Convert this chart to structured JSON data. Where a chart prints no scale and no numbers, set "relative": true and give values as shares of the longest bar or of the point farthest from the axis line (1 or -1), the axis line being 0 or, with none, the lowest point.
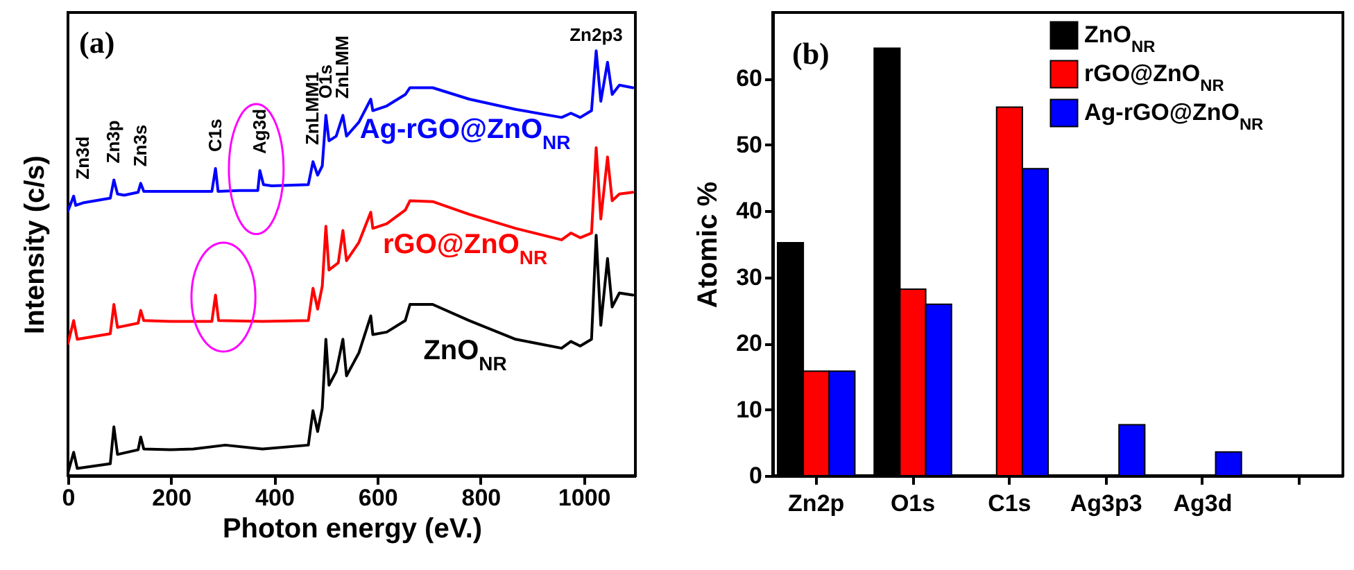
{
  "chart_data": [
    {
      "type": "line",
      "relative": true,
      "xlabel": "Photon energy (eV.)",
      "ylabel": "Intensity (c/s)",
      "xlim": [
        0,
        1100
      ],
      "xticks": [
        0,
        200,
        400,
        600,
        800,
        1000
      ],
      "grid": false,
      "annotations": [
        "(a)",
        {
          "text": "Zn3d",
          "x": 30,
          "y": 0.658
        },
        {
          "text": "Zn3p",
          "x": 89,
          "y": 0.696
        },
        {
          "text": "Zn3s",
          "x": 141,
          "y": 0.688
        },
        {
          "text": "C1s",
          "x": 286,
          "y": 0.723
        },
        {
          "text": "Ag3d",
          "x": 372,
          "y": 0.718
        },
        {
          "text": "ZnLMM1",
          "x": 475,
          "y": 0.739
        },
        {
          "text": "O1s",
          "x": 500,
          "y": 0.848
        },
        {
          "text": "ZnLMM",
          "x": 533,
          "y": 0.848
        },
        {
          "text": "Zn2p3",
          "x": 1024,
          "y": 1.0
        }
      ],
      "series": [
        {
          "name": "Ag-rGO@ZnO$_{NR}$",
          "color": "#0000ff",
          "x": [
            0,
            11,
            15,
            29,
            82,
            89,
            96,
            109,
            136,
            141,
            147,
            198,
            279,
            286,
            291,
            332,
            368,
            372,
            379,
            395,
            466,
            475,
            484,
            493,
            500,
            506,
            520,
            533,
            540,
            564,
            587,
            591,
            618,
            654,
            663,
            707,
            778,
            868,
            957,
            975,
            993,
            1015,
            1024,
            1033,
            1046,
            1055,
            1069,
            1095
          ],
          "values": [
            0.623,
            0.658,
            0.636,
            0.642,
            0.653,
            0.696,
            0.663,
            0.66,
            0.667,
            0.688,
            0.669,
            0.669,
            0.669,
            0.723,
            0.669,
            0.671,
            0.671,
            0.718,
            0.685,
            0.682,
            0.685,
            0.739,
            0.707,
            0.729,
            0.848,
            0.788,
            0.799,
            0.848,
            0.799,
            0.832,
            0.886,
            0.859,
            0.87,
            0.897,
            0.913,
            0.913,
            0.886,
            0.862,
            0.843,
            0.853,
            0.843,
            0.859,
            1.0,
            0.881,
            0.973,
            0.897,
            0.919,
            0.913
          ]
        },
        {
          "name": "rGO@ZnO$_{NR}$",
          "color": "#ff0000",
          "x": [
            0,
            11,
            18,
            82,
            89,
            96,
            136,
            141,
            147,
            198,
            279,
            286,
            292,
            377,
            466,
            475,
            484,
            493,
            500,
            506,
            524,
            533,
            540,
            564,
            587,
            591,
            618,
            654,
            663,
            707,
            778,
            868,
            957,
            975,
            993,
            1015,
            1024,
            1033,
            1046,
            1055,
            1069,
            1095
          ],
          "values": [
            0.311,
            0.365,
            0.321,
            0.334,
            0.403,
            0.349,
            0.359,
            0.389,
            0.365,
            0.363,
            0.363,
            0.425,
            0.365,
            0.363,
            0.365,
            0.441,
            0.392,
            0.446,
            0.587,
            0.484,
            0.501,
            0.577,
            0.506,
            0.549,
            0.62,
            0.582,
            0.593,
            0.625,
            0.647,
            0.645,
            0.615,
            0.582,
            0.555,
            0.571,
            0.56,
            0.571,
            0.772,
            0.604,
            0.75,
            0.647,
            0.663,
            0.667
          ]
        },
        {
          "name": "ZnO$_{NR}$",
          "color": "#000000",
          "x": [
            0,
            11,
            18,
            82,
            89,
            96,
            136,
            141,
            147,
            198,
            243,
            305,
            377,
            466,
            475,
            484,
            493,
            500,
            506,
            520,
            533,
            540,
            564,
            587,
            591,
            618,
            654,
            663,
            707,
            778,
            868,
            957,
            975,
            993,
            1015,
            1024,
            1033,
            1046,
            1055,
            1069,
            1095
          ],
          "values": [
            0.007,
            0.055,
            0.017,
            0.028,
            0.115,
            0.05,
            0.061,
            0.091,
            0.063,
            0.061,
            0.063,
            0.072,
            0.063,
            0.072,
            0.153,
            0.104,
            0.159,
            0.321,
            0.213,
            0.245,
            0.321,
            0.235,
            0.289,
            0.376,
            0.332,
            0.338,
            0.365,
            0.403,
            0.403,
            0.365,
            0.321,
            0.3,
            0.316,
            0.305,
            0.321,
            0.566,
            0.354,
            0.511,
            0.397,
            0.43,
            0.425
          ]
        }
      ]
    },
    {
      "type": "bar",
      "ylabel": "Atomic %",
      "ylim": [
        0,
        70
      ],
      "yticks": [
        0,
        10,
        20,
        30,
        40,
        50,
        60
      ],
      "grid": false,
      "legend": "top right",
      "categories": [
        "Zn2p",
        "O1s",
        "C1s",
        "Ag3p3",
        "Ag3d",
        null
      ],
      "annotations": [
        "(b)"
      ],
      "series": [
        {
          "name": "ZnO$_{NR}$",
          "color": "#000000",
          "values": [
            35.2,
            64.6,
            null,
            null,
            null,
            null
          ]
        },
        {
          "name": "rGO@ZnO$_{NR}$",
          "color": "#ff0000",
          "values": [
            15.8,
            28.2,
            55.7,
            null,
            null,
            null
          ]
        },
        {
          "name": "Ag-rGO@ZnO$_{NR}$",
          "color": "#0000ff",
          "values": [
            15.8,
            25.9,
            46.4,
            7.7,
            3.6,
            null
          ]
        }
      ]
    }
  ]
}
